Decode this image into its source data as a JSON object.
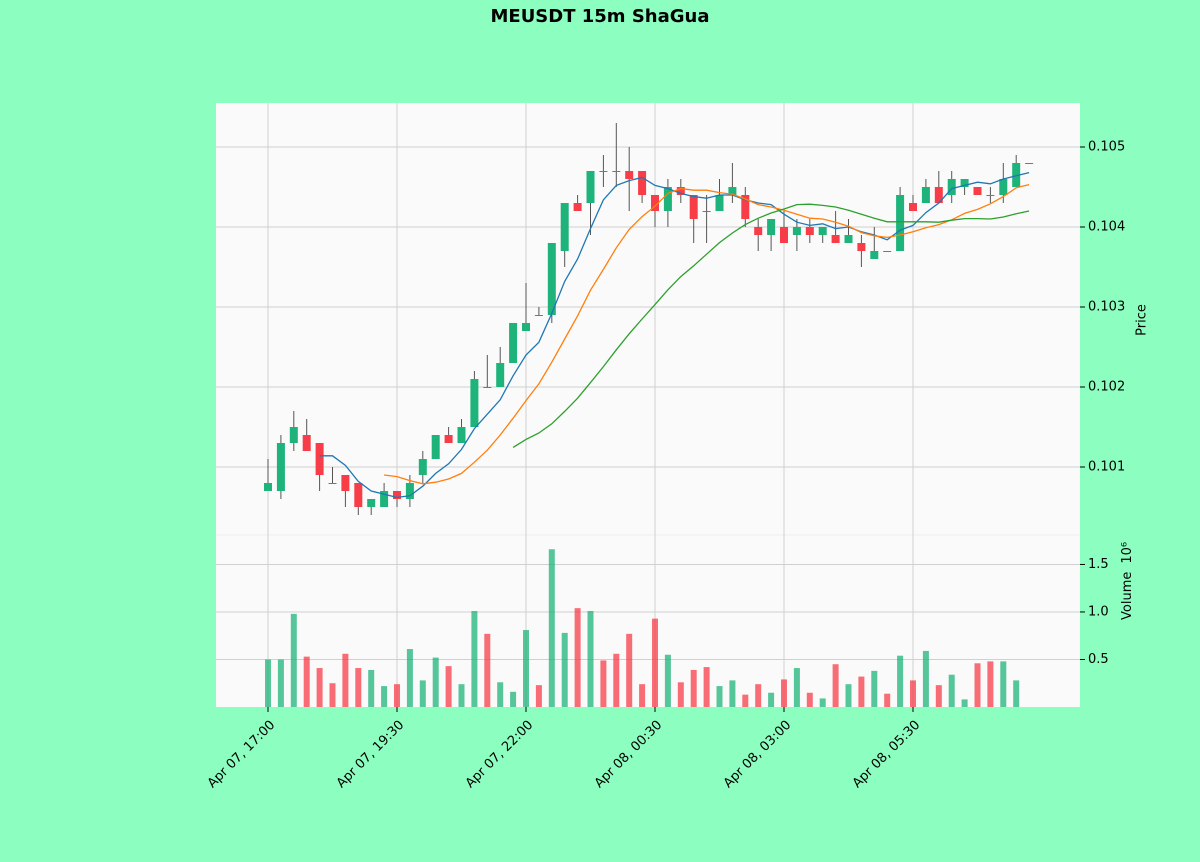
{
  "chart_data": {
    "type": "candlestick",
    "title": "MEUSDT 15m ShaGua",
    "x": [
      "Apr 07, 17:00",
      "Apr 07, 17:15",
      "Apr 07, 17:30",
      "Apr 07, 17:45",
      "Apr 07, 18:00",
      "Apr 07, 18:15",
      "Apr 07, 18:30",
      "Apr 07, 18:45",
      "Apr 07, 19:00",
      "Apr 07, 19:15",
      "Apr 07, 19:30",
      "Apr 07, 19:45",
      "Apr 07, 20:00",
      "Apr 07, 20:15",
      "Apr 07, 20:30",
      "Apr 07, 20:45",
      "Apr 07, 21:00",
      "Apr 07, 21:15",
      "Apr 07, 21:30",
      "Apr 07, 21:45",
      "Apr 07, 22:00",
      "Apr 07, 22:15",
      "Apr 07, 22:30",
      "Apr 07, 22:45",
      "Apr 07, 23:00",
      "Apr 07, 23:15",
      "Apr 07, 23:30",
      "Apr 07, 23:45",
      "Apr 08, 00:00",
      "Apr 08, 00:15",
      "Apr 08, 00:30",
      "Apr 08, 00:45",
      "Apr 08, 01:00",
      "Apr 08, 01:15",
      "Apr 08, 01:30",
      "Apr 08, 01:45",
      "Apr 08, 02:00",
      "Apr 08, 02:15",
      "Apr 08, 02:30",
      "Apr 08, 02:45",
      "Apr 08, 03:00",
      "Apr 08, 03:15",
      "Apr 08, 03:30",
      "Apr 08, 03:45",
      "Apr 08, 04:00",
      "Apr 08, 04:15",
      "Apr 08, 04:30",
      "Apr 08, 04:45",
      "Apr 08, 05:00",
      "Apr 08, 05:15",
      "Apr 08, 05:30",
      "Apr 08, 05:45",
      "Apr 08, 06:00",
      "Apr 08, 06:15",
      "Apr 08, 06:30",
      "Apr 08, 06:45",
      "Apr 08, 07:00",
      "Apr 08, 07:15",
      "Apr 08, 07:30",
      "Apr 08, 07:45"
    ],
    "xtick_every": 10,
    "open": [
      0.1007,
      0.1007,
      0.1013,
      0.1014,
      0.1013,
      0.1008,
      0.1009,
      0.1008,
      0.1005,
      0.1005,
      0.1007,
      0.1006,
      0.1009,
      0.1011,
      0.1014,
      0.1013,
      0.1015,
      0.102,
      0.102,
      0.1023,
      0.1027,
      0.1029,
      0.1029,
      0.1037,
      0.1043,
      0.1043,
      0.1047,
      0.1047,
      0.1047,
      0.1047,
      0.1044,
      0.1042,
      0.1045,
      0.1044,
      0.1042,
      0.1042,
      0.1044,
      0.1044,
      0.104,
      0.1039,
      0.104,
      0.1039,
      0.104,
      0.1039,
      0.1039,
      0.1038,
      0.1038,
      0.1036,
      0.1037,
      0.1037,
      0.1043,
      0.1043,
      0.1045,
      0.1044,
      0.1045,
      0.1045,
      0.1044,
      0.1044,
      0.1045,
      0.1048
    ],
    "high": [
      0.1011,
      0.1014,
      0.1017,
      0.1016,
      0.1013,
      0.101,
      0.1009,
      0.1008,
      0.1006,
      0.1008,
      0.1007,
      0.1009,
      0.1012,
      0.1014,
      0.1015,
      0.1016,
      0.1022,
      0.1024,
      0.1025,
      0.1028,
      0.1033,
      0.103,
      0.1038,
      0.1043,
      0.1044,
      0.1047,
      0.1049,
      0.1053,
      0.105,
      0.1047,
      0.1044,
      0.1046,
      0.1046,
      0.1044,
      0.1044,
      0.1046,
      0.1048,
      0.1045,
      0.1041,
      0.1041,
      0.1042,
      0.1041,
      0.1041,
      0.104,
      0.1042,
      0.1041,
      0.1039,
      0.104,
      0.1037,
      0.1045,
      0.1044,
      0.1046,
      0.1047,
      0.1047,
      0.1046,
      0.1045,
      0.1045,
      0.1048,
      0.1049,
      0.1048
    ],
    "low": [
      0.1007,
      0.1006,
      0.1012,
      0.1012,
      0.1007,
      0.1008,
      0.1005,
      0.1004,
      0.1004,
      0.1005,
      0.1005,
      0.1005,
      0.1008,
      0.1011,
      0.1013,
      0.1013,
      0.1015,
      0.102,
      0.102,
      0.1023,
      0.1027,
      0.1029,
      0.1028,
      0.1035,
      0.1042,
      0.1039,
      0.1045,
      0.1045,
      0.1042,
      0.1043,
      0.104,
      0.104,
      0.1043,
      0.1038,
      0.1038,
      0.1042,
      0.1043,
      0.104,
      0.1037,
      0.1037,
      0.1038,
      0.1037,
      0.1038,
      0.1038,
      0.1038,
      0.1038,
      0.1035,
      0.1036,
      0.1037,
      0.1037,
      0.1042,
      0.1043,
      0.1043,
      0.1043,
      0.1044,
      0.1044,
      0.1043,
      0.1043,
      0.1045,
      0.1048
    ],
    "close": [
      0.1008,
      0.1013,
      0.1015,
      0.1012,
      0.1009,
      0.1008,
      0.1007,
      0.1005,
      0.1006,
      0.1007,
      0.1006,
      0.1008,
      0.1011,
      0.1014,
      0.1013,
      0.1015,
      0.1021,
      0.102,
      0.1023,
      0.1028,
      0.1028,
      0.1029,
      0.1038,
      0.1043,
      0.1042,
      0.1047,
      0.1047,
      0.1047,
      0.1046,
      0.1044,
      0.1042,
      0.1045,
      0.1044,
      0.1041,
      0.1042,
      0.1044,
      0.1045,
      0.1041,
      0.1039,
      0.1041,
      0.1038,
      0.104,
      0.1039,
      0.104,
      0.1038,
      0.1039,
      0.1037,
      0.1037,
      0.1037,
      0.1044,
      0.1042,
      0.1045,
      0.1043,
      0.1046,
      0.1046,
      0.1044,
      0.1044,
      0.1046,
      0.1048,
      0.1048
    ],
    "volume": [
      0.5,
      0.5,
      0.98,
      0.53,
      0.41,
      0.25,
      0.56,
      0.41,
      0.39,
      0.22,
      0.24,
      0.61,
      0.28,
      0.52,
      0.43,
      0.24,
      1.01,
      0.77,
      0.26,
      0.16,
      0.81,
      0.23,
      1.66,
      0.78,
      1.04,
      1.01,
      0.49,
      0.56,
      0.77,
      0.24,
      0.93,
      0.55,
      0.26,
      0.39,
      0.42,
      0.22,
      0.28,
      0.13,
      0.24,
      0.15,
      0.29,
      0.41,
      0.15,
      0.09,
      0.45,
      0.24,
      0.32,
      0.38,
      0.14,
      0.54,
      0.28,
      0.59,
      0.23,
      0.34,
      0.08,
      0.46,
      0.48,
      0.48,
      0.28,
      0
    ],
    "series": [
      {
        "color": "#1f77b4",
        "values": [
          null,
          null,
          null,
          null,
          0.10114,
          0.10114,
          0.10102,
          0.10082,
          0.1007,
          0.10066,
          0.10062,
          0.10064,
          0.10076,
          0.10092,
          0.10104,
          0.10122,
          0.10148,
          0.10166,
          0.10184,
          0.10214,
          0.1024,
          0.10256,
          0.10292,
          0.10332,
          0.1036,
          0.10398,
          0.10434,
          0.10452,
          0.10458,
          0.10462,
          0.10452,
          0.10448,
          0.10442,
          0.10438,
          0.10436,
          0.1044,
          0.1044,
          0.10434,
          0.1043,
          0.10428,
          0.10416,
          0.10406,
          0.10402,
          0.10404,
          0.10398,
          0.104,
          0.10394,
          0.1039,
          0.10384,
          0.10396,
          0.10402,
          0.10418,
          0.1043,
          0.10448,
          0.10452,
          0.10456,
          0.10454,
          0.1046,
          0.10464,
          0.10468
        ]
      },
      {
        "color": "#ff7f0e",
        "values": [
          null,
          null,
          null,
          null,
          null,
          null,
          null,
          null,
          null,
          0.1009,
          0.10088,
          0.10083,
          0.10079,
          0.10081,
          0.10085,
          0.10092,
          0.10106,
          0.10121,
          0.1014,
          0.10161,
          0.10183,
          0.10204,
          0.10231,
          0.1026,
          0.10289,
          0.10321,
          0.10347,
          0.10374,
          0.10397,
          0.10413,
          0.10426,
          0.10442,
          0.10448,
          0.10446,
          0.10446,
          0.10443,
          0.10441,
          0.10435,
          0.10428,
          0.10425,
          0.10421,
          0.10416,
          0.10411,
          0.1041,
          0.10406,
          0.10401,
          0.10393,
          0.10389,
          0.10387,
          0.1039,
          0.10394,
          0.10399,
          0.10403,
          0.10409,
          0.10417,
          0.10422,
          0.10429,
          0.10438,
          0.10449,
          0.10453
        ]
      },
      {
        "color": "#2ca02c",
        "values": [
          null,
          null,
          null,
          null,
          null,
          null,
          null,
          null,
          null,
          null,
          null,
          null,
          null,
          null,
          null,
          null,
          null,
          null,
          null,
          0.101245,
          0.101345,
          0.101425,
          0.10154,
          0.101695,
          0.10186,
          0.102055,
          0.102255,
          0.102465,
          0.102665,
          0.10285,
          0.10303,
          0.103215,
          0.10338,
          0.103515,
          0.10366,
          0.103805,
          0.103925,
          0.10403,
          0.10411,
          0.104175,
          0.104225,
          0.10428,
          0.104285,
          0.10427,
          0.10425,
          0.10421,
          0.10416,
          0.10411,
          0.104065,
          0.104065,
          0.104065,
          0.104065,
          0.10406,
          0.104085,
          0.104105,
          0.104105,
          0.1041,
          0.104125,
          0.104165,
          0.1042
        ]
      }
    ],
    "up_color": "#1db37a",
    "down_color": "#f73d48",
    "ylim": [
      0.10015,
      0.10555
    ],
    "yticks": [
      0.101,
      0.102,
      0.103,
      0.104,
      0.105
    ],
    "ylabel": "Price",
    "volume_ylim": [
      0,
      1.81
    ],
    "volume_yticks": [
      0.5,
      {
        "value": 1,
        "label": "1.0"
      },
      1.5
    ],
    "volume_ylabel": "Volume",
    "volume_scale": "10⁶",
    "grid": true
  }
}
